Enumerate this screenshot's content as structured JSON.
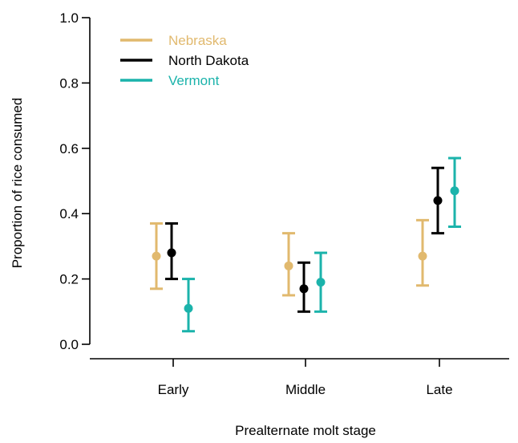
{
  "chart_data": {
    "type": "scatter",
    "subtype": "point-with-error-bars",
    "title": "",
    "xlabel": "Prealternate molt stage",
    "ylabel": "Proportion of rice consumed",
    "categories": [
      "Early",
      "Middle",
      "Late"
    ],
    "ylim": [
      0.0,
      1.0
    ],
    "yticks": [
      0.0,
      0.2,
      0.4,
      0.6,
      0.8,
      1.0
    ],
    "ytick_labels": [
      "0.0",
      "0.2",
      "0.4",
      "0.6",
      "0.8",
      "1.0"
    ],
    "grid": false,
    "legend_position": "top-left",
    "series": [
      {
        "name": "Nebraska",
        "color": "#e1b96e",
        "values": [
          0.27,
          0.24,
          0.27
        ],
        "lower": [
          0.17,
          0.15,
          0.18
        ],
        "upper": [
          0.37,
          0.34,
          0.38
        ]
      },
      {
        "name": "North Dakota",
        "color": "#000000",
        "values": [
          0.28,
          0.17,
          0.44
        ],
        "lower": [
          0.2,
          0.1,
          0.34
        ],
        "upper": [
          0.37,
          0.25,
          0.54
        ]
      },
      {
        "name": "Vermont",
        "color": "#1bb3ab",
        "values": [
          0.11,
          0.19,
          0.47
        ],
        "lower": [
          0.04,
          0.1,
          0.36
        ],
        "upper": [
          0.2,
          0.28,
          0.57
        ]
      }
    ]
  }
}
